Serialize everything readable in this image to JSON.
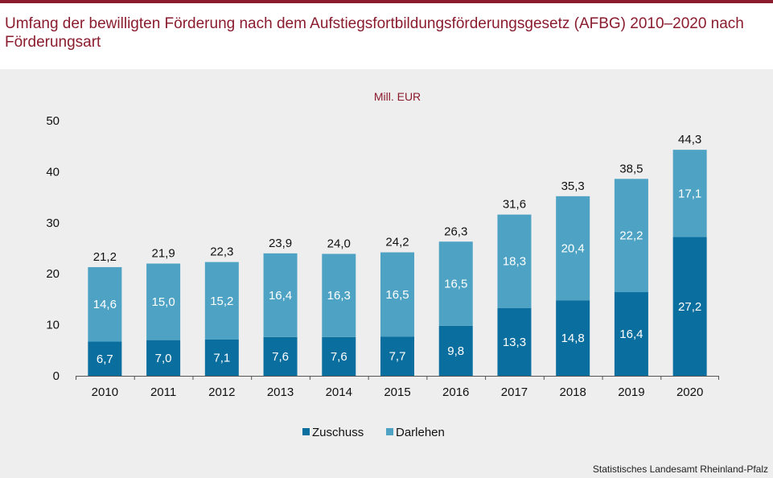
{
  "title": "Umfang der bewilligten Förderung nach dem Aufstiegsfortbildungsförderungsgesetz (AFBG) 2010–2020 nach Förderungsart",
  "source": "Statistisches Landesamt Rheinland-Pfalz",
  "colors": {
    "zuschuss": "#0a6e9e",
    "darlehen": "#4ea3c5",
    "title": "#8a1c2e",
    "panel": "#eeeeee"
  },
  "chart_data": {
    "type": "bar",
    "stacked": true,
    "unit_label": "Mill. EUR",
    "categories": [
      "2010",
      "2011",
      "2012",
      "2013",
      "2014",
      "2015",
      "2016",
      "2017",
      "2018",
      "2019",
      "2020"
    ],
    "series": [
      {
        "name": "Zuschuss",
        "values": [
          6.7,
          7.0,
          7.1,
          7.6,
          7.6,
          7.7,
          9.8,
          13.3,
          14.8,
          16.4,
          27.2
        ],
        "labels": [
          "6,7",
          "7,0",
          "7,1",
          "7,6",
          "7,6",
          "7,7",
          "9,8",
          "13,3",
          "14,8",
          "16,4",
          "27,2"
        ]
      },
      {
        "name": "Darlehen",
        "values": [
          14.6,
          15.0,
          15.2,
          16.4,
          16.3,
          16.5,
          16.5,
          18.3,
          20.4,
          22.2,
          17.1
        ],
        "labels": [
          "14,6",
          "15,0",
          "15,2",
          "16,4",
          "16,3",
          "16,5",
          "16,5",
          "18,3",
          "20,4",
          "22,2",
          "17,1"
        ]
      }
    ],
    "totals": [
      21.2,
      21.9,
      22.3,
      23.9,
      24.0,
      24.2,
      26.3,
      31.6,
      35.3,
      38.5,
      44.3
    ],
    "total_labels": [
      "21,2",
      "21,9",
      "22,3",
      "23,9",
      "24,0",
      "24,2",
      "26,3",
      "31,6",
      "35,3",
      "38,5",
      "44,3"
    ],
    "yticks": [
      "0",
      "10",
      "20",
      "30",
      "40",
      "50"
    ],
    "ylim": [
      0,
      50
    ],
    "legend_position": "bottom",
    "grid": false
  }
}
